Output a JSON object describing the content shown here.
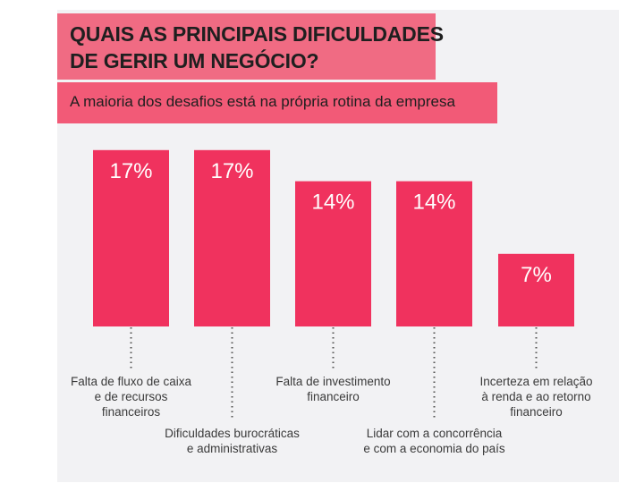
{
  "header": {
    "title_line_1": "QUAIS AS PRINCIPAIS DIFICULDADES",
    "title_line_2": "DE GERIR UM NEGÓCIO?",
    "subtitle": "A maioria dos desafios está na própria rotina da empresa"
  },
  "colors": {
    "bar": "#f0325e",
    "title_bg": "#f06b83",
    "subtitle_bg": "#f25a77",
    "panel_bg": "#f2f2f4",
    "label_text": "#ffffff",
    "category_text": "#3a3a3a"
  },
  "chart_data": {
    "type": "bar",
    "title": "QUAIS AS PRINCIPAIS DIFICULDADES DE GERIR UM NEGÓCIO?",
    "subtitle": "A maioria dos desafios está na própria rotina da empresa",
    "xlabel": "",
    "ylabel": "",
    "ylim": [
      0,
      17
    ],
    "grid": false,
    "legend": "none",
    "unit": "%",
    "categories": [
      [
        "Falta de fluxo de caixa",
        "e de recursos",
        "financeiros"
      ],
      [
        "Dificuldades burocráticas",
        "e administrativas"
      ],
      [
        "Falta de investimento",
        "financeiro"
      ],
      [
        "Lidar com a concorrência",
        "e com a economia do país"
      ],
      [
        "Incerteza em relação",
        "à renda e ao retorno",
        "financeiro"
      ]
    ],
    "values": [
      17,
      17,
      14,
      14,
      7
    ],
    "data_labels": [
      "17%",
      "17%",
      "14%",
      "14%",
      "7%"
    ]
  }
}
